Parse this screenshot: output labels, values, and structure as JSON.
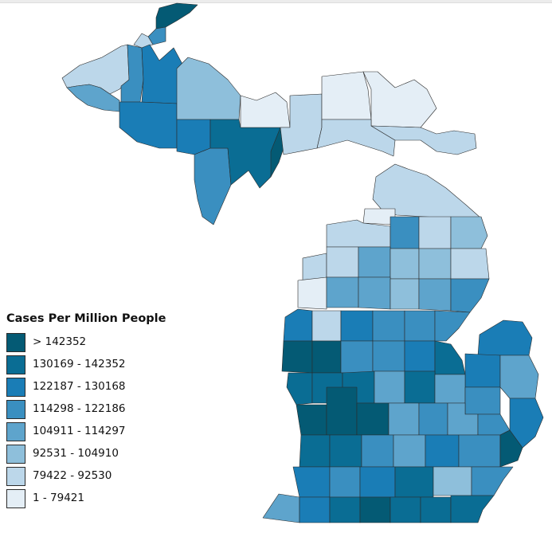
{
  "legend": {
    "title": "Cases Per Million People",
    "classes": [
      {
        "label": "> 142352",
        "color": "#045a74"
      },
      {
        "label": "130169 - 142352",
        "color": "#0a6d94"
      },
      {
        "label": "122187 - 130168",
        "color": "#1a7db6"
      },
      {
        "label": "114298 - 122186",
        "color": "#3a8fc0"
      },
      {
        "label": "104911 - 114297",
        "color": "#5ea4cc"
      },
      {
        "label": "92531 - 104910",
        "color": "#8ebfdb"
      },
      {
        "label": "79422 - 92530",
        "color": "#bcd7ea"
      },
      {
        "label": "1 - 79421",
        "color": "#e4eef6"
      }
    ]
  },
  "map": {
    "region": "Michigan",
    "shape_colors": {
      "outline": "#2b2b2b",
      "background": "#ffffff"
    }
  }
}
